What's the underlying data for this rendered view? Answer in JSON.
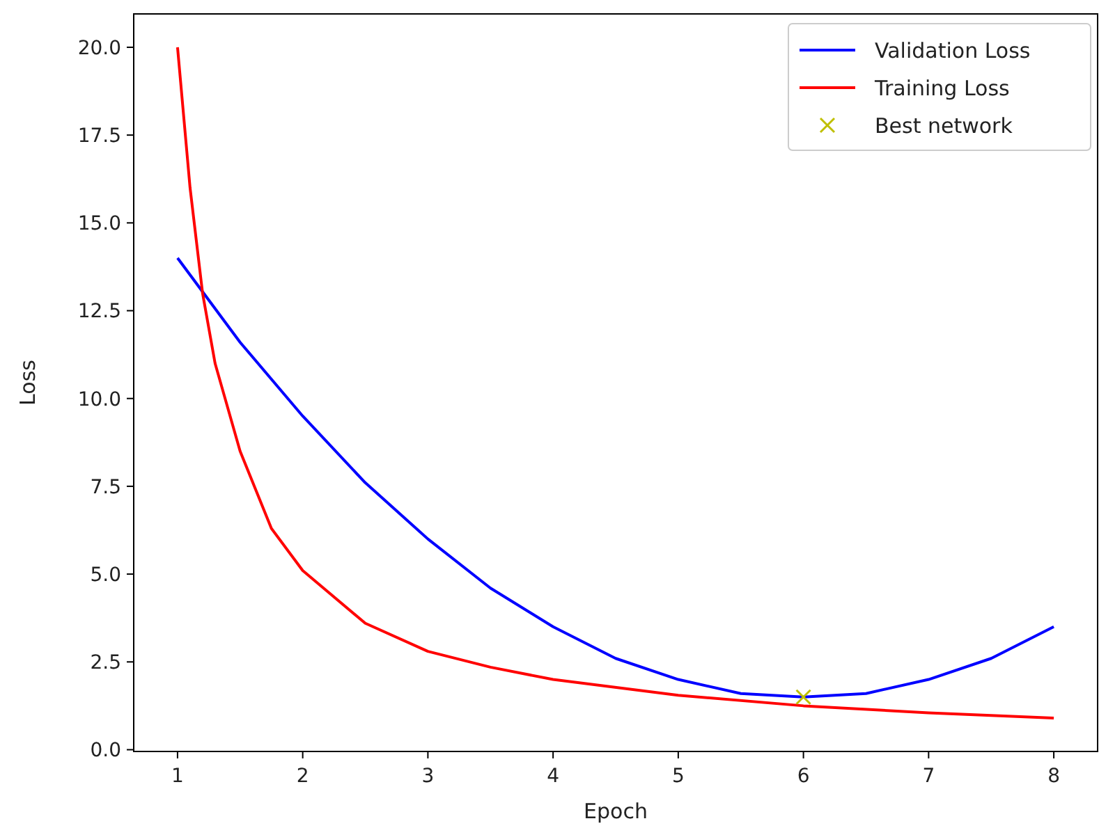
{
  "chart_data": {
    "type": "line",
    "xlabel": "Epoch",
    "ylabel": "Loss",
    "xlim": [
      0.65,
      8.35
    ],
    "ylim": [
      -0.05,
      20.95
    ],
    "xticks": [
      1,
      2,
      3,
      4,
      5,
      6,
      7,
      8
    ],
    "yticks": [
      {
        "value": 0,
        "label": "0.0"
      },
      {
        "value": 2.5,
        "label": "2.5"
      },
      {
        "value": 5,
        "label": "5.0"
      },
      {
        "value": 7.5,
        "label": "7.5"
      },
      {
        "value": 10,
        "label": "10.0"
      },
      {
        "value": 12.5,
        "label": "12.5"
      },
      {
        "value": 15,
        "label": "15.0"
      },
      {
        "value": 17.5,
        "label": "17.5"
      },
      {
        "value": 20,
        "label": "20.0"
      }
    ],
    "grid": false,
    "legend": "top right",
    "series": [
      {
        "name": "Validation Loss",
        "color": "#0000ff",
        "x": [
          1,
          1.5,
          2,
          2.5,
          3,
          3.5,
          4,
          4.5,
          5,
          5.5,
          6,
          6.5,
          7,
          7.5,
          8
        ],
        "values": [
          14,
          11.6,
          9.5,
          7.6,
          6,
          4.6,
          3.5,
          2.6,
          2,
          1.6,
          1.5,
          1.6,
          2,
          2.6,
          3.5
        ]
      },
      {
        "name": "Training Loss",
        "color": "#ff0000",
        "x": [
          1,
          1.1,
          1.2,
          1.3,
          1.5,
          1.75,
          2,
          2.5,
          3,
          3.5,
          4,
          5,
          6,
          7,
          8
        ],
        "values": [
          20,
          16,
          13,
          11,
          8.5,
          6.3,
          5.1,
          3.6,
          2.8,
          2.35,
          2,
          1.55,
          1.25,
          1.05,
          0.9
        ]
      },
      {
        "name": "Best network",
        "type": "scatter",
        "marker": "cross",
        "color": "#bfbf00",
        "x": [
          6
        ],
        "values": [
          1.5
        ]
      }
    ]
  }
}
